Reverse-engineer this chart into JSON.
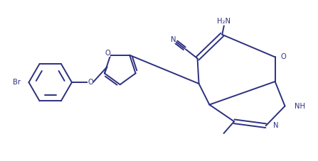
{
  "bg_color": "#ffffff",
  "line_color": "#2c3080",
  "lw": 1.4,
  "figsize": [
    4.47,
    2.27
  ],
  "dpi": 100,
  "xlim": [
    0,
    8.5
  ],
  "ylim": [
    0,
    4.3
  ]
}
